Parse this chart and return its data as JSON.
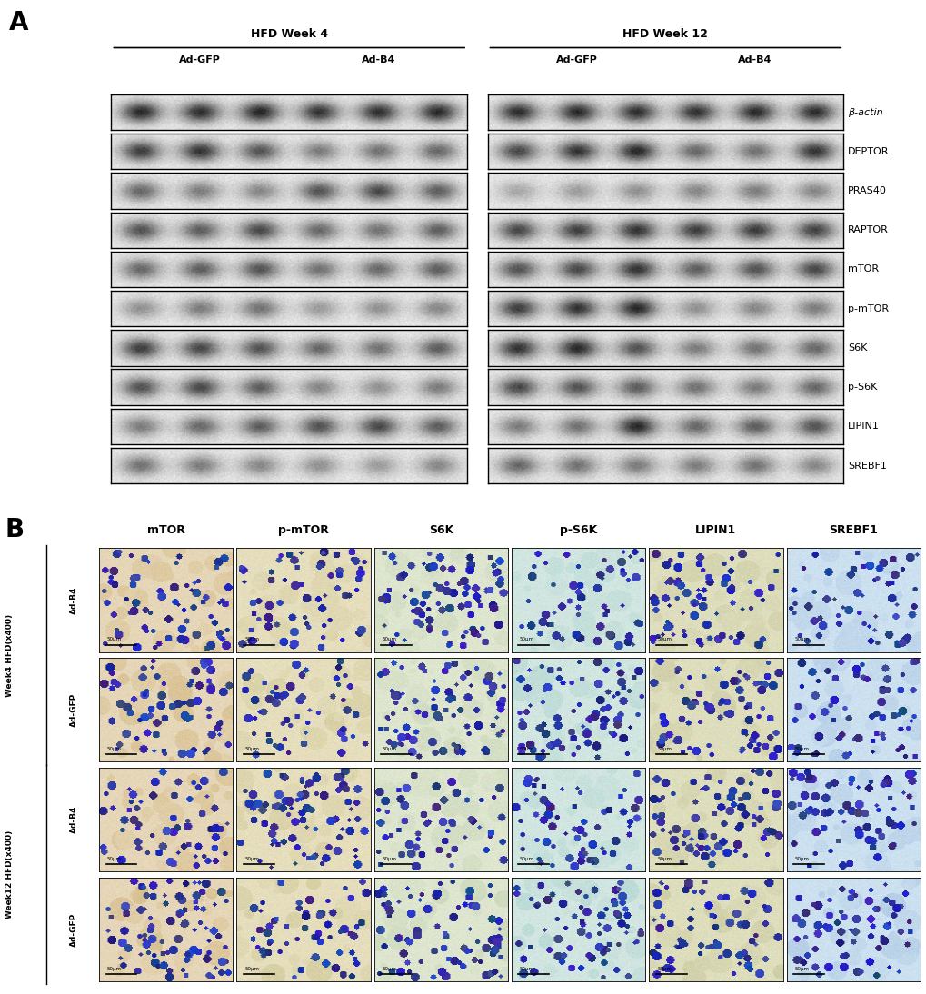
{
  "panel_A_label": "A",
  "panel_B_label": "B",
  "wb_group1_label": "HFD Week 4",
  "wb_group2_label": "HFD Week 12",
  "wb_subgroup1": "Ad-GFP",
  "wb_subgroup2": "Ad-B4",
  "wb_proteins": [
    "β-actin",
    "DEPTOR",
    "PRAS40",
    "RAPTOR",
    "mTOR",
    "p-mTOR",
    "S6K",
    "p-S6K",
    "LIPIN1",
    "SREBF1"
  ],
  "ihc_cols": [
    "mTOR",
    "p-mTOR",
    "S6K",
    "p-S6K",
    "LIPIN1",
    "SREBF1"
  ],
  "scale_bar_text": "50μm",
  "bg_color": "#ffffff",
  "figure_width": 10.2,
  "figure_height": 10.94
}
